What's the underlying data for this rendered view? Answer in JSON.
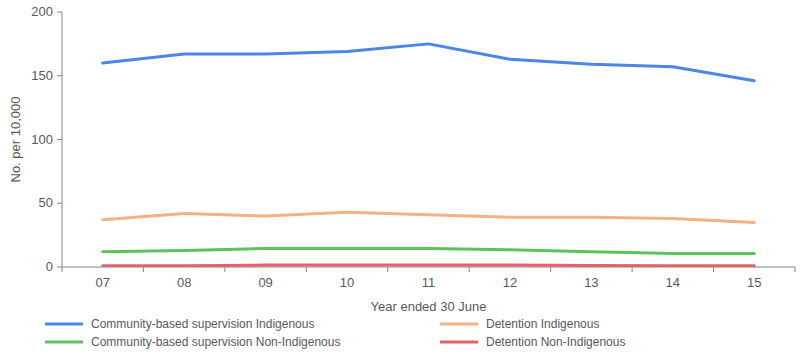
{
  "chart_data": {
    "type": "line",
    "x_label": "Year ended 30 June",
    "y_label": "No. per 10,000",
    "categories": [
      "07",
      "08",
      "09",
      "10",
      "11",
      "12",
      "13",
      "14",
      "15"
    ],
    "series": [
      {
        "name": "Community-based supervision Indigenous",
        "color": "#4a86e8",
        "values": [
          160,
          167,
          167,
          169,
          175,
          163,
          159,
          157,
          146
        ]
      },
      {
        "name": "Detention Indigenous",
        "color": "#f4b183",
        "values": [
          37,
          42,
          40,
          43,
          41,
          39,
          39,
          38,
          35
        ]
      },
      {
        "name": "Community-based supervision Non-Indigenous",
        "color": "#5cc35c",
        "values": [
          12,
          13,
          14.5,
          14.5,
          14.5,
          13.5,
          12,
          10.5,
          10.5
        ]
      },
      {
        "name": "Detention Non-Indigenous",
        "color": "#e8606a",
        "values": [
          1,
          1,
          1.5,
          1.5,
          1.5,
          1.5,
          1.2,
          1,
          1
        ]
      }
    ],
    "ylim": [
      0,
      200
    ],
    "yticks": [
      0,
      50,
      100,
      150,
      200
    ],
    "grid": false,
    "legend": "bottom"
  }
}
